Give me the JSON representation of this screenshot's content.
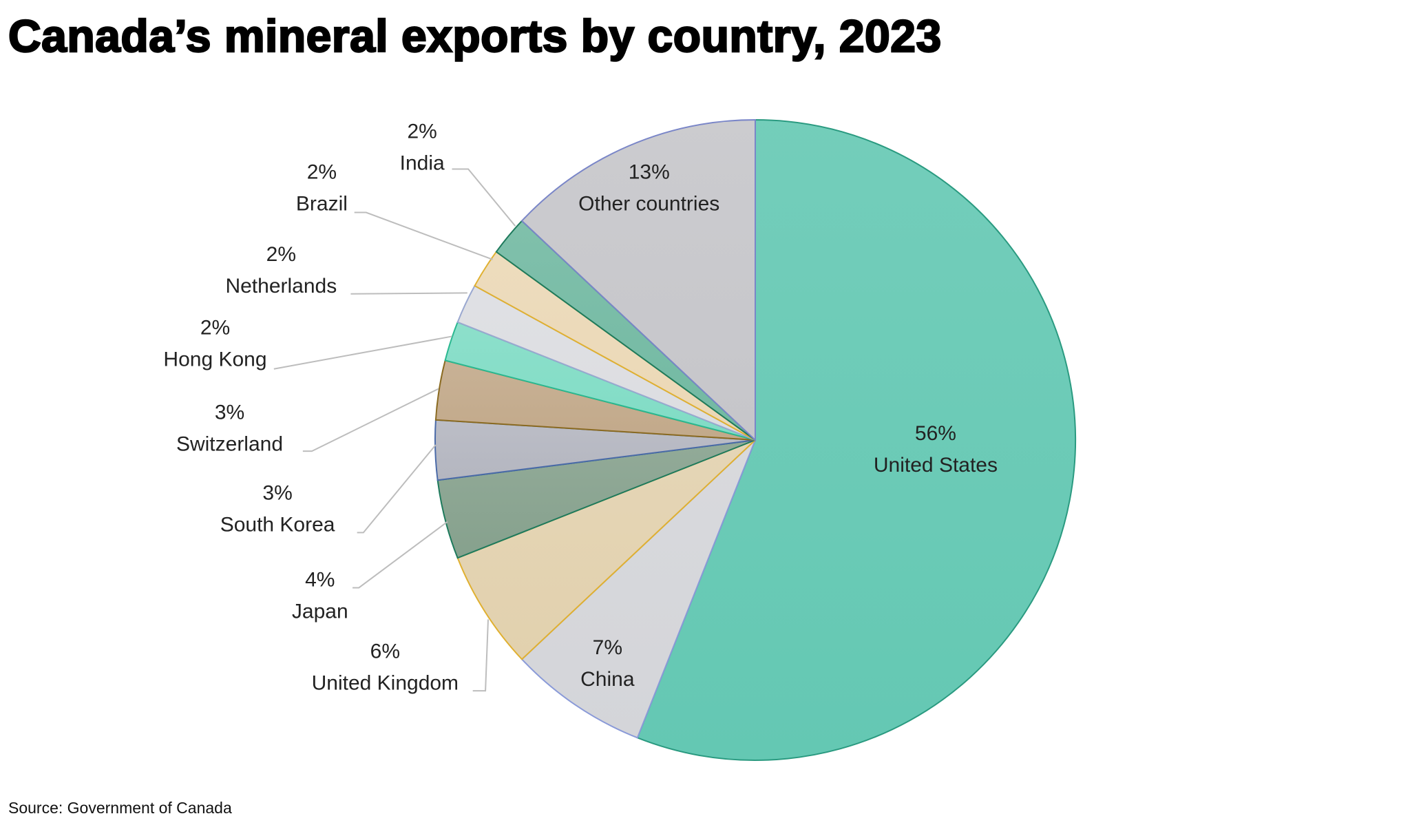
{
  "title": "Canada’s mineral exports by country, 2023",
  "source": "Source: Government of Canada",
  "chart_data": {
    "type": "pie",
    "title": "Canada’s mineral exports by country, 2023",
    "start": "12 o'clock, clockwise",
    "unit": "%",
    "slices": [
      {
        "label": "United States",
        "value": 56,
        "display": "56%",
        "color": "#64c8b3"
      },
      {
        "label": "China",
        "value": 7,
        "display": "7%",
        "color": "#d4d5d9"
      },
      {
        "label": "United Kingdom",
        "value": 6,
        "display": "6%",
        "color": "#e2d1ae"
      },
      {
        "label": "Japan",
        "value": 4,
        "display": "4%",
        "color": "#86a18d"
      },
      {
        "label": "South Korea",
        "value": 3,
        "display": "3%",
        "color": "#b4b6c0"
      },
      {
        "label": "Switzerland",
        "value": 3,
        "display": "3%",
        "color": "#c2a98a"
      },
      {
        "label": "Hong Kong",
        "value": 2,
        "display": "2%",
        "color": "#80dcc5"
      },
      {
        "label": "Netherlands",
        "value": 2,
        "display": "2%",
        "color": "#dcdde1"
      },
      {
        "label": "Brazil",
        "value": 2,
        "display": "2%",
        "color": "#ebd8b6"
      },
      {
        "label": "India",
        "value": 2,
        "display": "2%",
        "color": "#72b9a2"
      },
      {
        "label": "Other countries",
        "value": 13,
        "display": "13%",
        "color": "#c6c6ca"
      }
    ]
  }
}
